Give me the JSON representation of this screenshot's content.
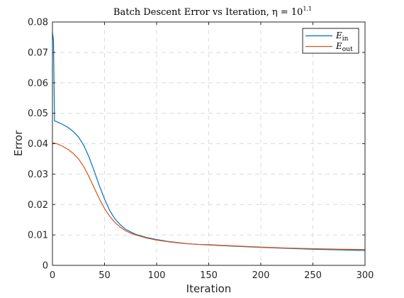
{
  "chart_data": {
    "type": "line",
    "title": "Batch Descent Error vs Iteration, η = 10",
    "title_superscript": "1.1",
    "xlabel": "Iteration",
    "ylabel": "Error",
    "xlim": [
      0,
      300
    ],
    "ylim": [
      0,
      0.08
    ],
    "xticks": [
      0,
      50,
      100,
      150,
      200,
      250,
      300
    ],
    "yticks": [
      0,
      0.01,
      0.02,
      0.03,
      0.04,
      0.05,
      0.06,
      0.07,
      0.08
    ],
    "xtick_labels": [
      "0",
      "50",
      "100",
      "150",
      "200",
      "250",
      "300"
    ],
    "ytick_labels": [
      "0",
      "0.01",
      "0.02",
      "0.03",
      "0.04",
      "0.05",
      "0.06",
      "0.07",
      "0.08"
    ],
    "grid": true,
    "legend_position": "top-right",
    "series": [
      {
        "name": "E",
        "subscript": "in",
        "color": "#0072BD",
        "x": [
          0,
          1,
          2,
          3,
          5,
          10,
          15,
          20,
          25,
          30,
          35,
          40,
          45,
          50,
          55,
          60,
          65,
          70,
          75,
          80,
          90,
          100,
          110,
          120,
          130,
          140,
          150,
          175,
          200,
          225,
          250,
          275,
          300
        ],
        "y": [
          0.0765,
          0.074,
          0.0475,
          0.0474,
          0.0471,
          0.0463,
          0.0453,
          0.044,
          0.0422,
          0.0395,
          0.0357,
          0.0311,
          0.0262,
          0.0218,
          0.018,
          0.0153,
          0.0134,
          0.0119,
          0.011,
          0.0102,
          0.0092,
          0.0085,
          0.0079,
          0.0075,
          0.0071,
          0.0069,
          0.0067,
          0.0063,
          0.0059,
          0.0056,
          0.0053,
          0.0051,
          0.0049
        ]
      },
      {
        "name": "E",
        "subscript": "out",
        "color": "#D95319",
        "x": [
          0,
          3,
          5,
          10,
          15,
          20,
          25,
          30,
          35,
          40,
          45,
          50,
          55,
          60,
          65,
          70,
          75,
          80,
          90,
          100,
          110,
          120,
          130,
          140,
          150,
          175,
          200,
          225,
          250,
          275,
          300
        ],
        "y": [
          0.0403,
          0.0401,
          0.0399,
          0.0391,
          0.0381,
          0.0368,
          0.035,
          0.0325,
          0.0292,
          0.0255,
          0.0219,
          0.0187,
          0.0161,
          0.0141,
          0.0126,
          0.0114,
          0.0106,
          0.01,
          0.009,
          0.0083,
          0.0078,
          0.0074,
          0.0071,
          0.0069,
          0.0068,
          0.0064,
          0.006,
          0.0057,
          0.0055,
          0.0053,
          0.0052
        ]
      }
    ]
  }
}
